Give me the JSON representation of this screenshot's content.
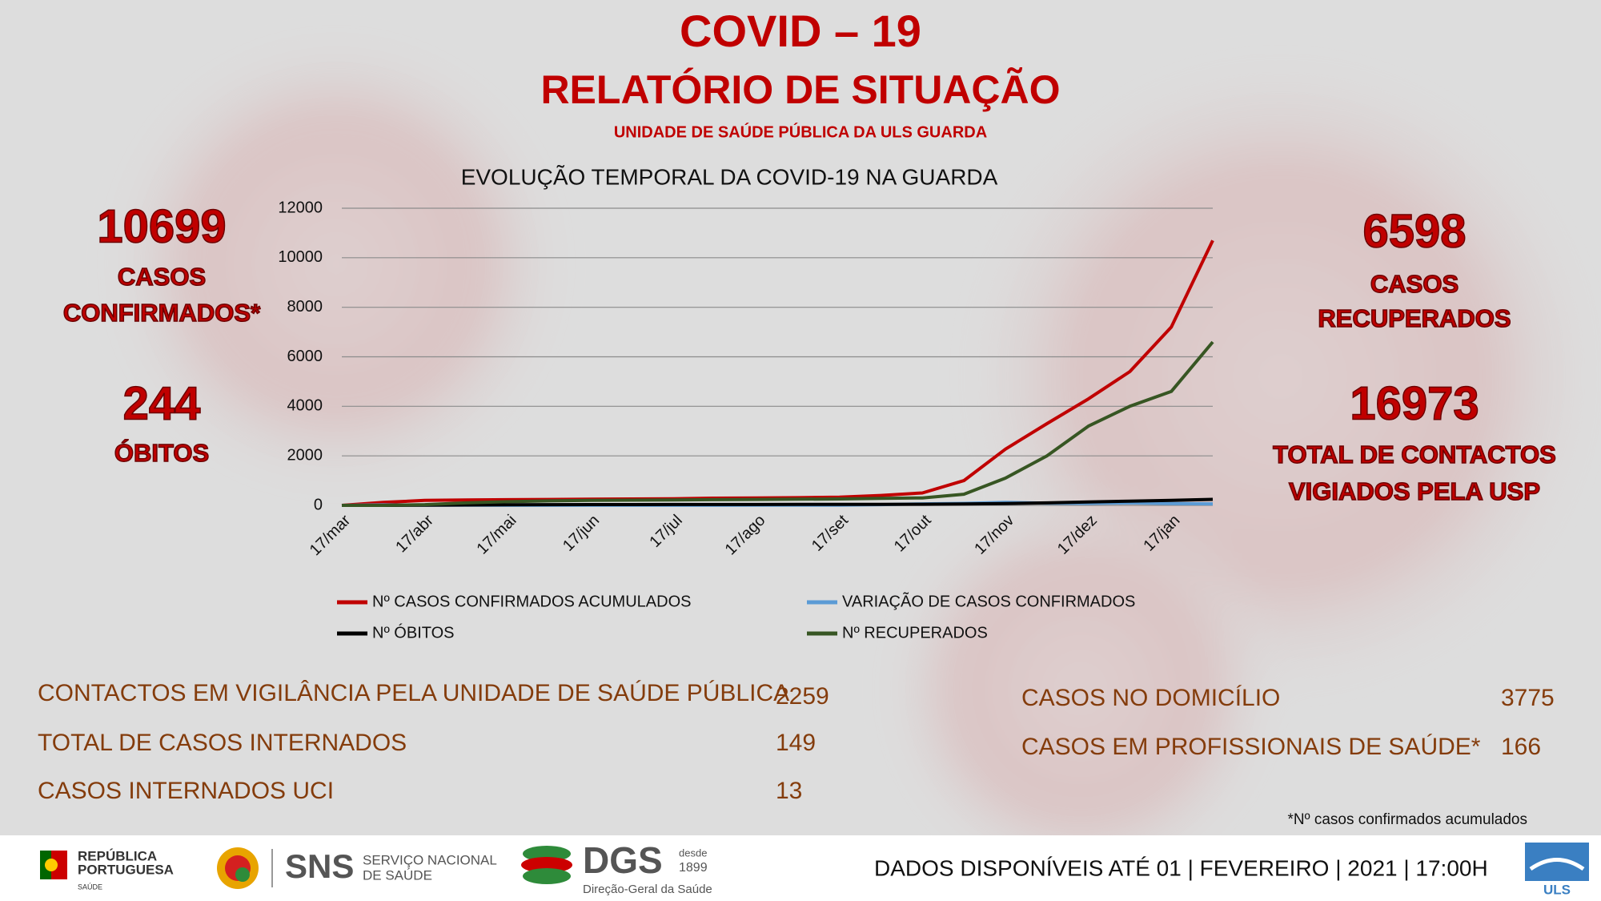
{
  "header": {
    "title": "COVID – 19",
    "subtitle": "RELATÓRIO DE SITUAÇÃO",
    "unit": "UNIDADE DE SAÚDE PÚBLICA DA ULS GUARDA"
  },
  "chart_data": {
    "type": "line",
    "title": "EVOLUÇÃO TEMPORAL DA COVID-19 NA GUARDA",
    "categories": [
      "17/mar",
      null,
      "17/abr",
      null,
      "17/mai",
      null,
      "17/jun",
      null,
      "17/jul",
      null,
      "17/ago",
      null,
      "17/set",
      null,
      "17/out",
      null,
      "17/nov",
      null,
      "17/dez",
      null,
      "17/jan",
      null
    ],
    "series": [
      {
        "name": "Nº CASOS CONFIRMADOS ACUMULADOS",
        "color": "#c00000",
        "values": [
          0,
          120,
          200,
          220,
          230,
          240,
          250,
          260,
          270,
          290,
          300,
          310,
          330,
          400,
          500,
          1000,
          2270,
          3300,
          4300,
          5400,
          7200,
          10699
        ]
      },
      {
        "name": "VARIAÇÃO DE CASOS CONFIRMADOS",
        "color": "#5b9bd5",
        "values": [
          0,
          20,
          10,
          5,
          3,
          2,
          2,
          3,
          4,
          3,
          5,
          5,
          10,
          30,
          60,
          80,
          120,
          90,
          80,
          100,
          70,
          60
        ]
      },
      {
        "name": "Nº ÓBITOS",
        "color": "#000000",
        "values": [
          0,
          0,
          5,
          15,
          25,
          30,
          32,
          33,
          34,
          35,
          36,
          38,
          40,
          42,
          45,
          55,
          70,
          100,
          140,
          170,
          200,
          244
        ]
      },
      {
        "name": "Nº RECUPERADOS",
        "color": "#375623",
        "values": [
          0,
          0,
          30,
          100,
          150,
          180,
          200,
          210,
          220,
          230,
          240,
          250,
          260,
          280,
          300,
          450,
          1100,
          2000,
          3200,
          4000,
          4600,
          6598
        ]
      }
    ],
    "ylim": [
      0,
      12000
    ],
    "yticks": [
      0,
      2000,
      4000,
      6000,
      8000,
      10000,
      12000
    ],
    "grid": true
  },
  "stats": {
    "confirmed": {
      "value": 10699,
      "label": [
        "CASOS",
        "CONFIRMADOS*"
      ]
    },
    "deaths": {
      "value": 244,
      "label": [
        "ÓBITOS"
      ]
    },
    "recovered": {
      "value": 6598,
      "label": [
        "CASOS",
        "RECUPERADOS"
      ]
    },
    "contacts": {
      "value": 16973,
      "label": [
        "TOTAL DE CONTACTOS",
        "VIGIADOS PELA USP"
      ]
    }
  },
  "table": {
    "left": [
      [
        "CONTACTOS EM VIGILÂNCIA PELA UNIDADE DE SAÚDE PÚBLICA",
        2259
      ],
      [
        "TOTAL DE CASOS INTERNADOS",
        149
      ],
      [
        "CASOS INTERNADOS UCI",
        13
      ]
    ],
    "right": [
      [
        "CASOS NO DOMICÍLIO",
        3775
      ],
      [
        "CASOS EM PROFISSIONAIS DE SAÚDE*",
        166
      ]
    ]
  },
  "footnote": "*Nº casos confirmados acumulados",
  "footer": {
    "date": "DADOS DISPONÍVEIS ATÉ 01 | FEVEREIRO | 2021 | 17:00H",
    "logos": {
      "republica": [
        "REPÚBLICA",
        "PORTUGUESA",
        "SAÚDE"
      ],
      "sns": [
        "SNS",
        "SERVIÇO NACIONAL",
        "DE SAÚDE"
      ],
      "dgs": [
        "DGS",
        "desde",
        "1899",
        "Direção-Geral da Saúde"
      ],
      "uls": "ULS"
    }
  }
}
